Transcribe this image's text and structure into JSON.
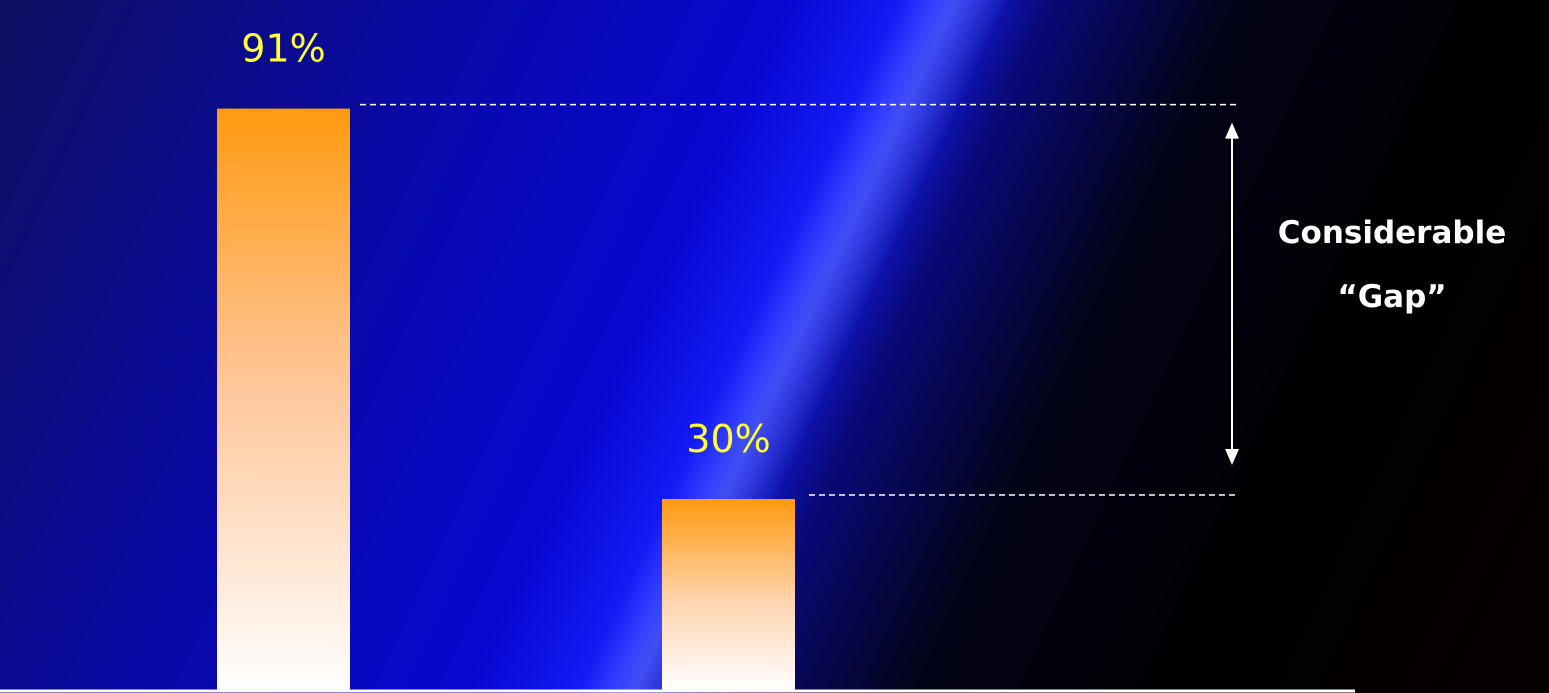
{
  "chart_data": {
    "type": "bar",
    "categories": [
      "",
      ""
    ],
    "values": [
      91,
      30
    ],
    "value_labels": [
      "91%",
      "30%"
    ],
    "title": "",
    "xlabel": "",
    "ylabel": "",
    "ylim": [
      0,
      100
    ],
    "grid": false,
    "legend": "none",
    "bar_gradient": [
      "#ff9a10",
      "#ffffff"
    ],
    "value_label_color": "#ffff33",
    "annotation": {
      "line1": "Considerable",
      "line2": "“Gap”",
      "color": "#ffffff",
      "spans_values": [
        91,
        30
      ]
    }
  }
}
